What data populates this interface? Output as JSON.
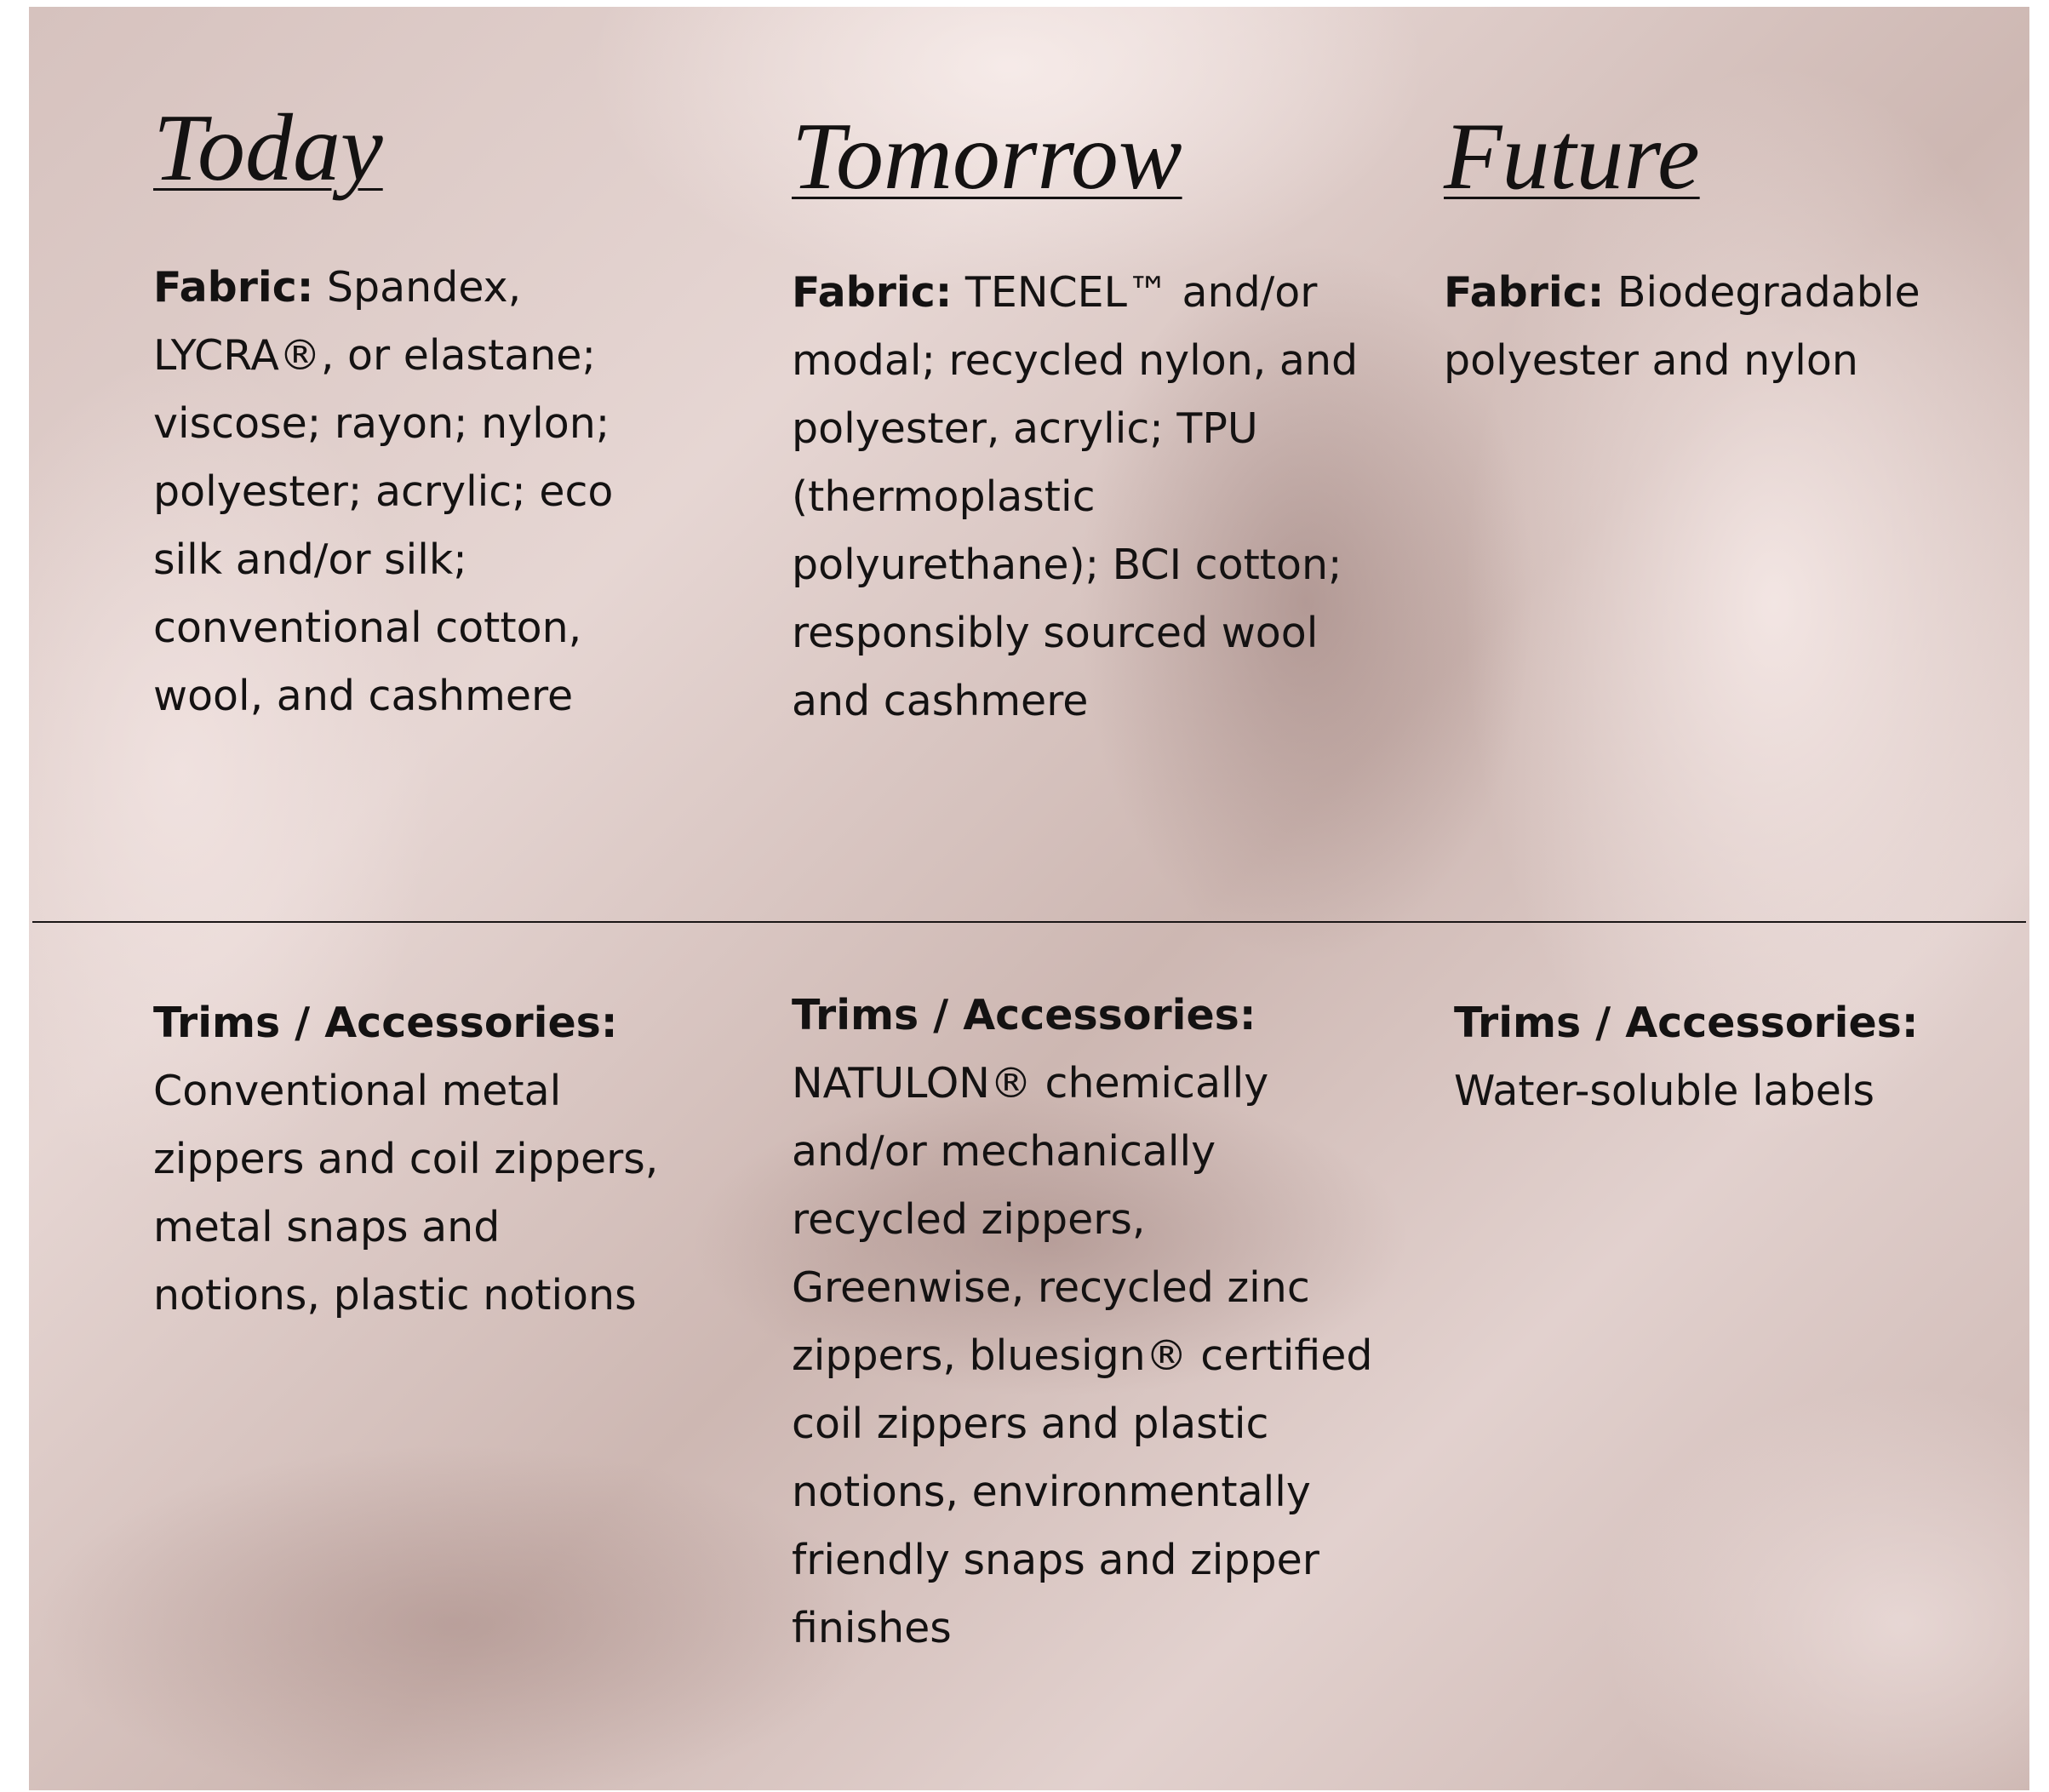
{
  "columns": [
    {
      "heading": "Today",
      "fabric": {
        "label": "Fabric:",
        "text": "Spandex, LYCRA®, or elastane; viscose; rayon; nylon; polyester; acrylic; eco silk and/or silk; conventional cotton, wool, and cashmere"
      },
      "trims": {
        "label": "Trims / Accessories:",
        "text": "Conventional metal zippers and coil zippers, metal snaps and notions, plastic notions"
      }
    },
    {
      "heading": "Tomorrow",
      "fabric": {
        "label": "Fabric:",
        "text": "TENCEL™ and/or modal; recycled nylon, and polyester, acrylic; TPU (thermoplastic polyurethane); BCI cotton; responsibly sourced wool and cashmere"
      },
      "trims": {
        "label": "Trims / Accessories:",
        "text": "NATULON® chemically and/or mechanically recycled zippers, Greenwise, recycled zinc zippers, bluesign® certified coil zippers and plastic notions, environmentally friendly snaps and zipper finishes"
      }
    },
    {
      "heading": "Future",
      "fabric": {
        "label": "Fabric:",
        "text": "Biodegradable polyester and nylon"
      },
      "trims": {
        "label": "Trims / Accessories:",
        "text": "Water-soluble labels"
      }
    }
  ]
}
